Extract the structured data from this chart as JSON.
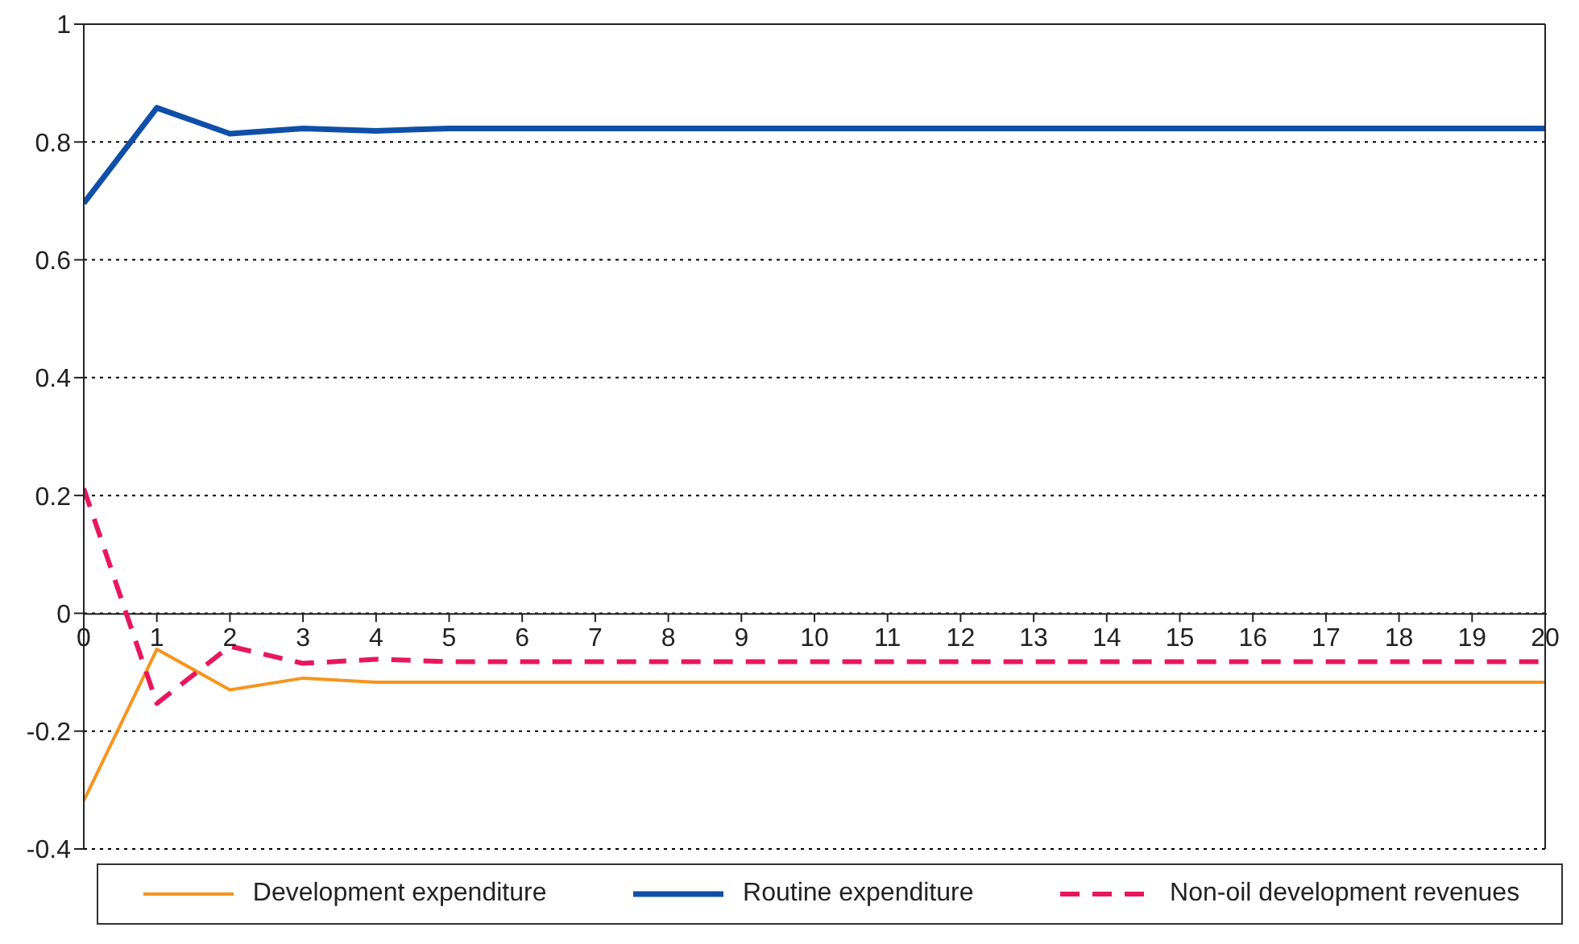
{
  "chart_data": {
    "type": "line",
    "x": [
      0,
      1,
      2,
      3,
      4,
      5,
      6,
      7,
      8,
      9,
      10,
      11,
      12,
      13,
      14,
      15,
      16,
      17,
      18,
      19,
      20
    ],
    "series": [
      {
        "name": "Development expenditure",
        "color": "#f7941d",
        "values": [
          -0.318,
          -0.061,
          -0.13,
          -0.11,
          -0.117,
          -0.117,
          -0.117,
          -0.117,
          -0.117,
          -0.117,
          -0.117,
          -0.117,
          -0.117,
          -0.117,
          -0.117,
          -0.117,
          -0.117,
          -0.117,
          -0.117,
          -0.117,
          -0.117
        ]
      },
      {
        "name": "Routine expenditure",
        "color": "#0f4fa8",
        "values": [
          0.696,
          0.858,
          0.814,
          0.823,
          0.819,
          0.823,
          0.823,
          0.823,
          0.823,
          0.823,
          0.823,
          0.823,
          0.823,
          0.823,
          0.823,
          0.823,
          0.823,
          0.823,
          0.823,
          0.823,
          0.823
        ]
      },
      {
        "name": "Non-oil development revenues",
        "color": "#e8175d",
        "line_style": "dashed",
        "values": [
          0.212,
          -0.153,
          -0.056,
          -0.085,
          -0.078,
          -0.082,
          -0.082,
          -0.082,
          -0.082,
          -0.082,
          -0.082,
          -0.082,
          -0.082,
          -0.082,
          -0.082,
          -0.082,
          -0.082,
          -0.082,
          -0.082,
          -0.082,
          -0.082
        ]
      }
    ],
    "xlim": [
      0,
      20
    ],
    "xticks": [
      0,
      1,
      2,
      3,
      4,
      5,
      6,
      7,
      8,
      9,
      10,
      11,
      12,
      13,
      14,
      15,
      16,
      17,
      18,
      19,
      20
    ],
    "ylim": [
      -0.4,
      1
    ],
    "yticks": [
      -0.4,
      -0.2,
      0,
      0.2,
      0.4,
      0.6,
      0.8,
      1
    ],
    "grid": "y",
    "legend": "bottom",
    "marker": "none"
  }
}
